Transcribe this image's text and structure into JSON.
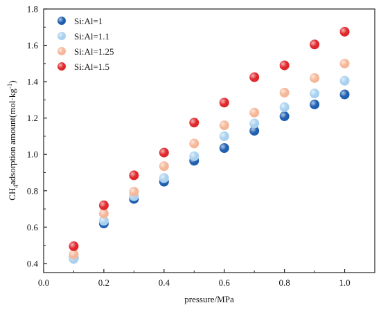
{
  "chart_data": {
    "type": "scatter",
    "xlabel": "pressure/MPa",
    "ylabel": {
      "prefix": "CH",
      "sub": "4",
      "mid": "adsorption amount(mol·kg",
      "sup": "-1",
      "suffix": ")"
    },
    "xlim": [
      0.0,
      1.1
    ],
    "ylim": [
      0.35,
      1.8
    ],
    "xticks": [
      "0.0",
      "0.2",
      "0.4",
      "0.6",
      "0.8",
      "1.0"
    ],
    "yticks": [
      "0.4",
      "0.6",
      "0.8",
      "1.0",
      "1.2",
      "1.4",
      "1.6",
      "1.8"
    ],
    "grid": false,
    "legend_position": "top-left",
    "x": [
      0.1,
      0.2,
      0.3,
      0.4,
      0.5,
      0.6,
      0.7,
      0.8,
      0.9,
      1.0
    ],
    "series": [
      {
        "name": "Si:Al=1",
        "color": "#1f5fb0",
        "values": [
          0.43,
          0.62,
          0.755,
          0.85,
          0.965,
          1.035,
          1.13,
          1.21,
          1.275,
          1.33
        ]
      },
      {
        "name": "Si:Al=1.1",
        "color": "#a9d1ef",
        "values": [
          0.425,
          0.635,
          0.77,
          0.87,
          0.99,
          1.1,
          1.17,
          1.26,
          1.335,
          1.405
        ]
      },
      {
        "name": "Si:Al=1.25",
        "color": "#f5b79a",
        "values": [
          0.45,
          0.675,
          0.795,
          0.935,
          1.06,
          1.16,
          1.23,
          1.34,
          1.42,
          1.5
        ]
      },
      {
        "name": "Si:Al=1.5",
        "color": "#e0282c",
        "values": [
          0.495,
          0.72,
          0.885,
          1.01,
          1.175,
          1.285,
          1.425,
          1.49,
          1.605,
          1.675
        ]
      }
    ]
  }
}
